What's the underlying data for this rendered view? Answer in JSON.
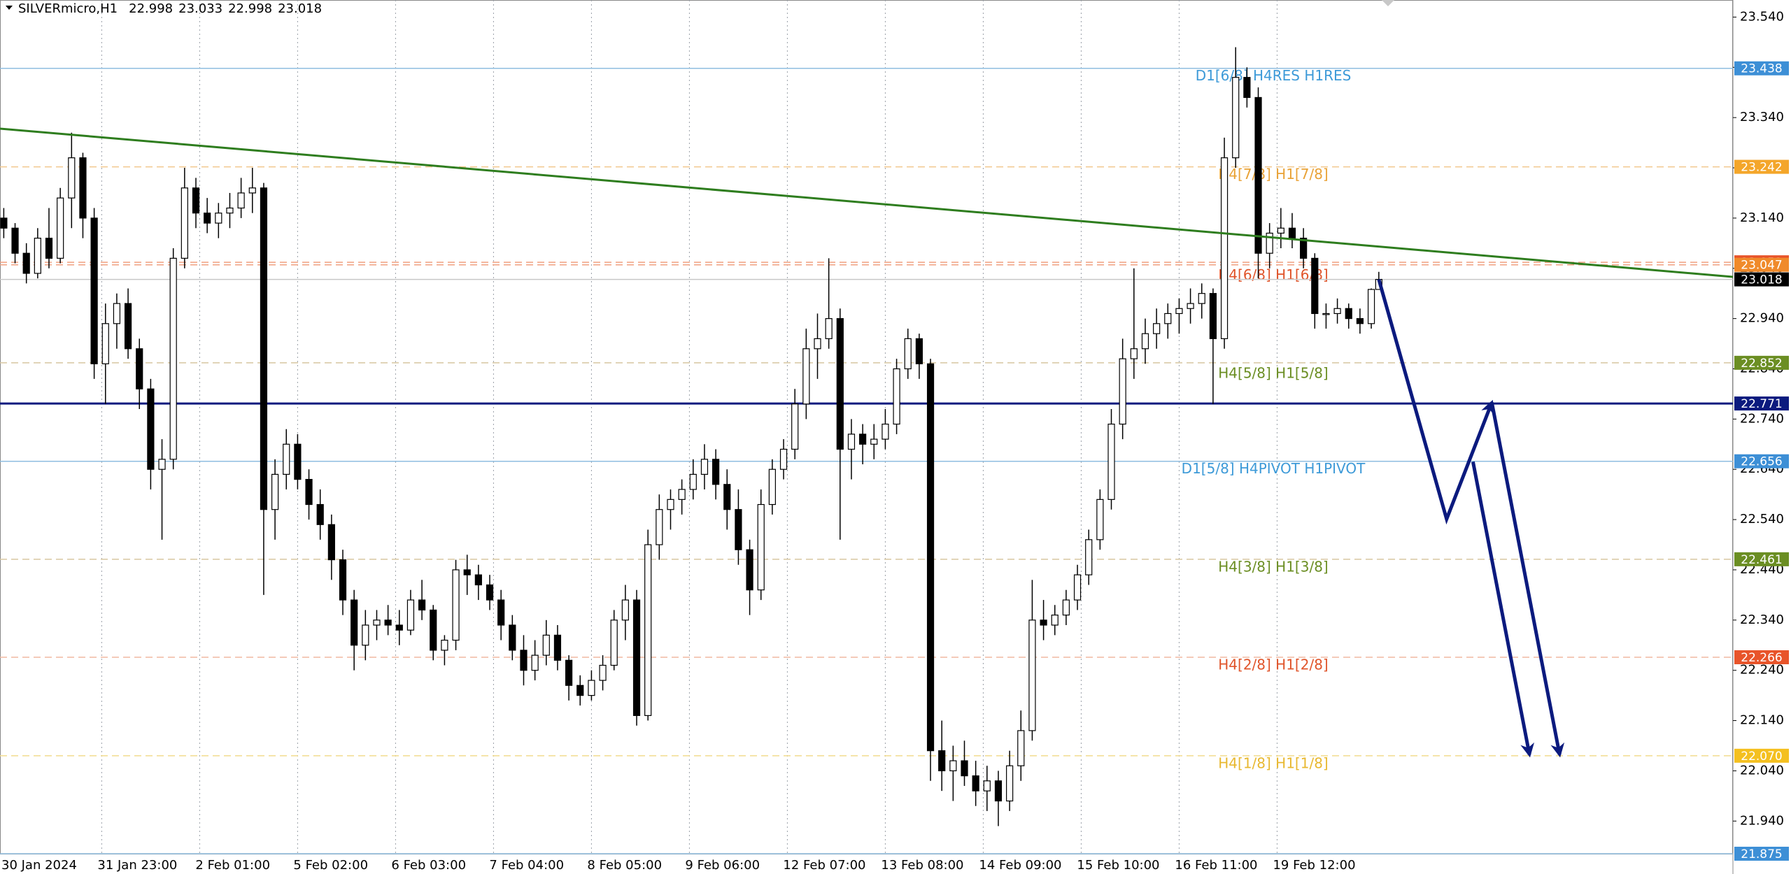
{
  "chart_data": {
    "type": "candlestick",
    "title": "SILVERmicro,H1",
    "candle_columns": [
      "x",
      "open",
      "high",
      "low",
      "close"
    ],
    "candles": [
      [
        1,
        23.14,
        23.16,
        23.1,
        23.12
      ],
      [
        4,
        23.12,
        23.13,
        23.05,
        23.07
      ],
      [
        7,
        23.07,
        23.09,
        23.01,
        23.03
      ],
      [
        10,
        23.03,
        23.12,
        23.02,
        23.1
      ],
      [
        13,
        23.1,
        23.16,
        23.04,
        23.06
      ],
      [
        16,
        23.06,
        23.2,
        23.05,
        23.18
      ],
      [
        19,
        23.18,
        23.31,
        23.12,
        23.26
      ],
      [
        22,
        23.26,
        23.27,
        23.1,
        23.14
      ],
      [
        25,
        23.14,
        23.16,
        22.82,
        22.85
      ],
      [
        28,
        22.85,
        22.97,
        22.77,
        22.93
      ],
      [
        31,
        22.93,
        22.99,
        22.88,
        22.97
      ],
      [
        34,
        22.97,
        23.0,
        22.86,
        22.88
      ],
      [
        37,
        22.88,
        22.9,
        22.76,
        22.8
      ],
      [
        40,
        22.8,
        22.82,
        22.6,
        22.64
      ],
      [
        43,
        22.64,
        22.7,
        22.5,
        22.66
      ],
      [
        46,
        22.66,
        23.08,
        22.64,
        23.06
      ],
      [
        49,
        23.06,
        23.24,
        23.04,
        23.2
      ],
      [
        52,
        23.2,
        23.22,
        23.12,
        23.15
      ],
      [
        55,
        23.15,
        23.18,
        23.11,
        23.13
      ],
      [
        58,
        23.13,
        23.17,
        23.1,
        23.15
      ],
      [
        61,
        23.15,
        23.19,
        23.12,
        23.16
      ],
      [
        64,
        23.16,
        23.22,
        23.14,
        23.19
      ],
      [
        67,
        23.19,
        23.24,
        23.15,
        23.2
      ],
      [
        70,
        23.2,
        23.21,
        22.39,
        22.56
      ],
      [
        73,
        22.56,
        22.66,
        22.5,
        22.63
      ],
      [
        76,
        22.63,
        22.72,
        22.6,
        22.69
      ],
      [
        79,
        22.69,
        22.71,
        22.6,
        22.62
      ],
      [
        82,
        22.62,
        22.64,
        22.54,
        22.57
      ],
      [
        85,
        22.57,
        22.6,
        22.5,
        22.53
      ],
      [
        88,
        22.53,
        22.55,
        22.42,
        22.46
      ],
      [
        91,
        22.46,
        22.48,
        22.35,
        22.38
      ],
      [
        94,
        22.38,
        22.4,
        22.24,
        22.29
      ],
      [
        97,
        22.29,
        22.36,
        22.26,
        22.33
      ],
      [
        100,
        22.33,
        22.36,
        22.3,
        22.34
      ],
      [
        103,
        22.34,
        22.37,
        22.31,
        22.33
      ],
      [
        106,
        22.33,
        22.36,
        22.29,
        22.32
      ],
      [
        109,
        22.32,
        22.4,
        22.31,
        22.38
      ],
      [
        112,
        22.38,
        22.42,
        22.34,
        22.36
      ],
      [
        115,
        22.36,
        22.37,
        22.26,
        22.28
      ],
      [
        118,
        22.28,
        22.31,
        22.25,
        22.3
      ],
      [
        121,
        22.3,
        22.46,
        22.28,
        22.44
      ],
      [
        124,
        22.44,
        22.47,
        22.39,
        22.43
      ],
      [
        127,
        22.43,
        22.45,
        22.38,
        22.41
      ],
      [
        130,
        22.41,
        22.43,
        22.36,
        22.38
      ],
      [
        133,
        22.38,
        22.4,
        22.3,
        22.33
      ],
      [
        136,
        22.33,
        22.35,
        22.26,
        22.28
      ],
      [
        139,
        22.28,
        22.31,
        22.21,
        22.24
      ],
      [
        142,
        22.24,
        22.3,
        22.22,
        22.27
      ],
      [
        145,
        22.27,
        22.34,
        22.25,
        22.31
      ],
      [
        148,
        22.31,
        22.33,
        22.24,
        22.26
      ],
      [
        151,
        22.26,
        22.27,
        22.18,
        22.21
      ],
      [
        154,
        22.21,
        22.23,
        22.17,
        22.19
      ],
      [
        157,
        22.19,
        22.24,
        22.18,
        22.22
      ],
      [
        160,
        22.22,
        22.27,
        22.2,
        22.25
      ],
      [
        163,
        22.25,
        22.36,
        22.24,
        22.34
      ],
      [
        166,
        22.34,
        22.41,
        22.3,
        22.38
      ],
      [
        169,
        22.38,
        22.4,
        22.13,
        22.15
      ],
      [
        172,
        22.15,
        22.52,
        22.14,
        22.49
      ],
      [
        175,
        22.49,
        22.59,
        22.46,
        22.56
      ],
      [
        178,
        22.56,
        22.6,
        22.52,
        22.58
      ],
      [
        181,
        22.58,
        22.62,
        22.55,
        22.6
      ],
      [
        184,
        22.6,
        22.66,
        22.58,
        22.63
      ],
      [
        187,
        22.63,
        22.69,
        22.6,
        22.66
      ],
      [
        190,
        22.66,
        22.68,
        22.58,
        22.61
      ],
      [
        193,
        22.61,
        22.64,
        22.52,
        22.56
      ],
      [
        196,
        22.56,
        22.6,
        22.45,
        22.48
      ],
      [
        199,
        22.48,
        22.5,
        22.35,
        22.4
      ],
      [
        202,
        22.4,
        22.6,
        22.38,
        22.57
      ],
      [
        205,
        22.57,
        22.66,
        22.55,
        22.64
      ],
      [
        208,
        22.64,
        22.7,
        22.62,
        22.68
      ],
      [
        211,
        22.68,
        22.8,
        22.66,
        22.77
      ],
      [
        214,
        22.77,
        22.92,
        22.74,
        22.88
      ],
      [
        217,
        22.88,
        22.95,
        22.82,
        22.9
      ],
      [
        220,
        22.9,
        23.06,
        22.88,
        22.94
      ],
      [
        223,
        22.94,
        22.96,
        22.5,
        22.68
      ],
      [
        226,
        22.68,
        22.74,
        22.62,
        22.71
      ],
      [
        229,
        22.71,
        22.73,
        22.65,
        22.69
      ],
      [
        232,
        22.69,
        22.73,
        22.66,
        22.7
      ],
      [
        235,
        22.7,
        22.76,
        22.68,
        22.73
      ],
      [
        238,
        22.73,
        22.86,
        22.71,
        22.84
      ],
      [
        241,
        22.84,
        22.92,
        22.82,
        22.9
      ],
      [
        244,
        22.9,
        22.91,
        22.82,
        22.85
      ],
      [
        247,
        22.85,
        22.86,
        22.02,
        22.08
      ],
      [
        250,
        22.08,
        22.14,
        22.0,
        22.04
      ],
      [
        253,
        22.04,
        22.09,
        21.98,
        22.06
      ],
      [
        256,
        22.06,
        22.1,
        22.01,
        22.03
      ],
      [
        259,
        22.03,
        22.06,
        21.97,
        22.0
      ],
      [
        262,
        22.0,
        22.05,
        21.96,
        22.02
      ],
      [
        265,
        22.02,
        22.04,
        21.93,
        21.98
      ],
      [
        268,
        21.98,
        22.08,
        21.96,
        22.05
      ],
      [
        271,
        22.05,
        22.16,
        22.02,
        22.12
      ],
      [
        274,
        22.12,
        22.42,
        22.1,
        22.34
      ],
      [
        277,
        22.34,
        22.38,
        22.3,
        22.33
      ],
      [
        280,
        22.33,
        22.37,
        22.31,
        22.35
      ],
      [
        283,
        22.35,
        22.4,
        22.33,
        22.38
      ],
      [
        286,
        22.38,
        22.45,
        22.36,
        22.43
      ],
      [
        289,
        22.43,
        22.52,
        22.41,
        22.5
      ],
      [
        292,
        22.5,
        22.6,
        22.48,
        22.58
      ],
      [
        295,
        22.58,
        22.76,
        22.56,
        22.73
      ],
      [
        298,
        22.73,
        22.9,
        22.7,
        22.86
      ],
      [
        301,
        22.86,
        23.04,
        22.82,
        22.88
      ],
      [
        304,
        22.88,
        22.94,
        22.85,
        22.91
      ],
      [
        307,
        22.91,
        22.96,
        22.88,
        22.93
      ],
      [
        310,
        22.93,
        22.97,
        22.9,
        22.95
      ],
      [
        313,
        22.95,
        22.98,
        22.91,
        22.96
      ],
      [
        316,
        22.96,
        23.0,
        22.93,
        22.97
      ],
      [
        319,
        22.97,
        23.01,
        22.94,
        22.99
      ],
      [
        322,
        22.99,
        23.0,
        22.77,
        22.9
      ],
      [
        325,
        22.9,
        23.3,
        22.88,
        23.26
      ],
      [
        328,
        23.26,
        23.48,
        23.24,
        23.42
      ],
      [
        331,
        23.42,
        23.44,
        23.36,
        23.38
      ],
      [
        334,
        23.38,
        23.4,
        23.02,
        23.07
      ],
      [
        337,
        23.07,
        23.13,
        23.04,
        23.11
      ],
      [
        340,
        23.11,
        23.16,
        23.08,
        23.12
      ],
      [
        343,
        23.12,
        23.15,
        23.08,
        23.1
      ],
      [
        346,
        23.1,
        23.12,
        23.04,
        23.06
      ],
      [
        349,
        23.06,
        23.07,
        22.92,
        22.95
      ],
      [
        352,
        22.95,
        22.97,
        22.92,
        22.95
      ],
      [
        355,
        22.95,
        22.98,
        22.93,
        22.96
      ],
      [
        358,
        22.96,
        22.97,
        22.92,
        22.94
      ],
      [
        361,
        22.94,
        22.96,
        22.91,
        22.93
      ],
      [
        364,
        22.93,
        23.0,
        22.92,
        22.998
      ],
      [
        366,
        22.998,
        23.033,
        22.998,
        23.018
      ]
    ],
    "xlim": [
      0,
      460
    ],
    "xticks": [
      {
        "value": 1,
        "label": "30 Jan 2024"
      },
      {
        "value": 27,
        "label": "31 Jan 23:00"
      },
      {
        "value": 53,
        "label": "2 Feb 01:00"
      },
      {
        "value": 79,
        "label": "5 Feb 02:00"
      },
      {
        "value": 105,
        "label": "6 Feb 03:00"
      },
      {
        "value": 131,
        "label": "7 Feb 04:00"
      },
      {
        "value": 157,
        "label": "8 Feb 05:00"
      },
      {
        "value": 183,
        "label": "9 Feb 06:00"
      },
      {
        "value": 209,
        "label": "12 Feb 07:00"
      },
      {
        "value": 235,
        "label": "13 Feb 08:00"
      },
      {
        "value": 261,
        "label": "14 Feb 09:00"
      },
      {
        "value": 287,
        "label": "15 Feb 10:00"
      },
      {
        "value": 313,
        "label": "16 Feb 11:00"
      },
      {
        "value": 339,
        "label": "19 Feb 12:00"
      }
    ],
    "ylim": [
      21.875,
      23.574
    ],
    "yticks": [
      {
        "value": 21.94,
        "label": "21.940"
      },
      {
        "value": 22.04,
        "label": "22.040"
      },
      {
        "value": 22.14,
        "label": "22.140"
      },
      {
        "value": 22.24,
        "label": "22.240"
      },
      {
        "value": 22.34,
        "label": "22.340"
      },
      {
        "value": 22.44,
        "label": "22.440"
      },
      {
        "value": 22.54,
        "label": "22.540"
      },
      {
        "value": 22.64,
        "label": "22.640"
      },
      {
        "value": 22.74,
        "label": "22.740"
      },
      {
        "value": 22.84,
        "label": "22.840"
      },
      {
        "value": 22.94,
        "label": "22.940"
      },
      {
        "value": 23.04,
        "label": "23.040"
      },
      {
        "value": 23.14,
        "label": "23.140"
      },
      {
        "value": 23.24,
        "label": "23.240"
      },
      {
        "value": 23.34,
        "label": "23.340"
      },
      {
        "value": 23.44,
        "label": "23.440"
      },
      {
        "value": 23.54,
        "label": "23.540"
      }
    ],
    "levels": [
      {
        "value": 23.438,
        "text": "D1[6/8] H4RES H1RES",
        "color": "#8fbde0",
        "tag_color": "#3d8fd6",
        "text_color": "#3d9ad8",
        "dash": false
      },
      {
        "value": 23.242,
        "text": "H4[7/8] H1[7/8]",
        "color": "#f2c88e",
        "tag_color": "#f4a62a",
        "text_color": "#e9a236",
        "dash": true
      },
      {
        "value": 23.052,
        "color": "#f0a080",
        "tag_color": "#e8542a",
        "dash": true
      },
      {
        "value": 23.047,
        "text": "H4[6/8] H1[6/8]",
        "color": "#f0a080",
        "tag_color": "#f08a2a",
        "text_color": "#e0542a",
        "dash": true
      },
      {
        "value": 23.018,
        "color": "#c8c8c8",
        "tag_color": "#000000",
        "dash": false
      },
      {
        "value": 22.852,
        "text": "H4[5/8] H1[5/8]",
        "color": "#d8c6a0",
        "tag_color": "#6b8e23",
        "text_color": "#6b8e23",
        "dash": true
      },
      {
        "value": 22.771,
        "color": "#0b1a7e",
        "tag_color": "#0b1a7e",
        "dash": false,
        "width": 3
      },
      {
        "value": 22.656,
        "text": "D1[5/8] H4PIVOT H1PIVOT",
        "color": "#8fbde0",
        "tag_color": "#3d8fd6",
        "text_color": "#3d9ad8",
        "dash": false
      },
      {
        "value": 22.461,
        "text": "H4[3/8] H1[3/8]",
        "color": "#d8c6a0",
        "tag_color": "#6b8e23",
        "text_color": "#6b8e23",
        "dash": true
      },
      {
        "value": 22.266,
        "text": "H4[2/8] H1[2/8]",
        "color": "#f0b8a0",
        "tag_color": "#e8542a",
        "text_color": "#e0542a",
        "dash": true
      },
      {
        "value": 22.07,
        "value_label": "22.070",
        "text": "H4[1/8] H1[1/8]",
        "color": "#f2dc8e",
        "tag_color": "#f4c020",
        "text_color": "#e8b830",
        "dash": true
      },
      {
        "value": 21.875,
        "color": "#8fbde0",
        "tag_color": "#3d8fd6",
        "dash": false
      }
    ],
    "trendline": {
      "color": "#2e7d1e",
      "x": [
        0,
        460
      ],
      "y": [
        23.318,
        23.023
      ]
    },
    "forecast_color": "#0b1a7e",
    "forecast": [
      {
        "x": [
          366,
          384,
          396
        ],
        "y": [
          23.018,
          22.541,
          22.773
        ]
      },
      {
        "x": [
          391,
          406
        ],
        "y": [
          22.655,
          22.072
        ]
      },
      {
        "x": [
          396,
          414
        ],
        "y": [
          22.773,
          22.072
        ]
      }
    ],
    "bull_color": "#ffffff",
    "bear_color": "#000000"
  }
}
